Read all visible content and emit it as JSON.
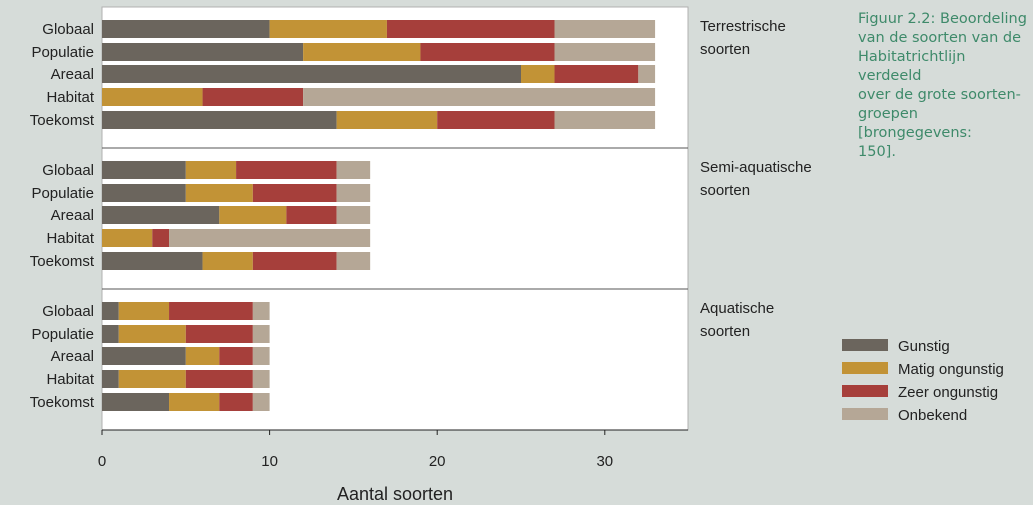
{
  "caption": "Figuur 2.2: Beoordeling\nvan de soorten van de\nHabitatrichtlijn verdeeld\nover de grote soorten-\ngroepen [brongegevens:\n150].",
  "colors": {
    "background": "#d6dcd9",
    "plot_background": "#ffffff",
    "Gunstig": "#6b655d",
    "Matig ongunstig": "#c29336",
    "Zeer ongunstig": "#a63f3b",
    "Onbekend": "#b5a796"
  },
  "chart_data": {
    "type": "bar",
    "orientation": "horizontal",
    "stacked": true,
    "xlabel": "Aantal soorten",
    "xlim": [
      0,
      35
    ],
    "xticks": [
      0,
      10,
      20,
      30
    ],
    "grid": false,
    "legend": {
      "placement": "right",
      "entries": [
        "Gunstig",
        "Matig ongunstig",
        "Zeer ongunstig",
        "Onbekend"
      ]
    },
    "categories": [
      "Globaal",
      "Populatie",
      "Areaal",
      "Habitat",
      "Toekomst"
    ],
    "panels": [
      {
        "label": "Terrestrische\nsoorten",
        "series": [
          {
            "name": "Gunstig",
            "values": [
              10,
              12,
              25,
              0,
              14
            ]
          },
          {
            "name": "Matig ongunstig",
            "values": [
              7,
              7,
              2,
              6,
              6
            ]
          },
          {
            "name": "Zeer ongunstig",
            "values": [
              10,
              8,
              5,
              6,
              7
            ]
          },
          {
            "name": "Onbekend",
            "values": [
              6,
              6,
              1,
              21,
              6
            ]
          }
        ]
      },
      {
        "label": "Semi-aquatische\nsoorten",
        "series": [
          {
            "name": "Gunstig",
            "values": [
              5,
              5,
              7,
              0,
              6
            ]
          },
          {
            "name": "Matig ongunstig",
            "values": [
              3,
              4,
              4,
              3,
              3
            ]
          },
          {
            "name": "Zeer ongunstig",
            "values": [
              6,
              5,
              3,
              1,
              5
            ]
          },
          {
            "name": "Onbekend",
            "values": [
              2,
              2,
              2,
              12,
              2
            ]
          }
        ]
      },
      {
        "label": "Aquatische\nsoorten",
        "series": [
          {
            "name": "Gunstig",
            "values": [
              1,
              1,
              5,
              1,
              4
            ]
          },
          {
            "name": "Matig ongunstig",
            "values": [
              3,
              4,
              2,
              4,
              3
            ]
          },
          {
            "name": "Zeer ongunstig",
            "values": [
              5,
              4,
              2,
              4,
              2
            ]
          },
          {
            "name": "Onbekend",
            "values": [
              1,
              1,
              1,
              1,
              1
            ]
          }
        ]
      }
    ]
  }
}
